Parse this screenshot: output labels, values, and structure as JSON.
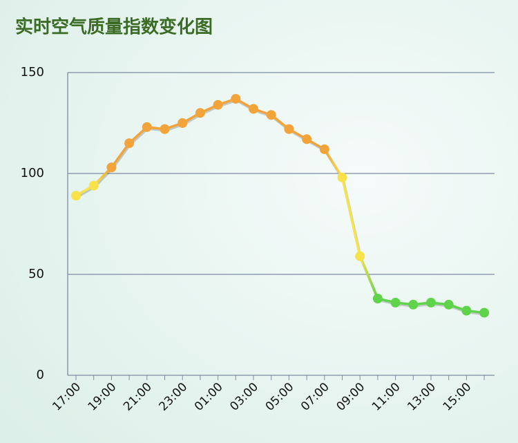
{
  "chart_data": {
    "type": "line",
    "title": "实时空气质量指数变化图",
    "categories": [
      "17:00",
      null,
      "19:00",
      null,
      "21:00",
      null,
      "23:00",
      null,
      "01:00",
      null,
      "03:00",
      null,
      "05:00",
      null,
      "07:00",
      null,
      "09:00",
      null,
      "11:00",
      null,
      "13:00",
      null,
      "15:00",
      null
    ],
    "series": [
      {
        "values": [
          89,
          94,
          103,
          115,
          123,
          122,
          125,
          130,
          134,
          137,
          132,
          129,
          122,
          117,
          112,
          98,
          59,
          38,
          36,
          35,
          36,
          35,
          32,
          31
        ],
        "colors": [
          "#f7e24a",
          "#f7e24a",
          "#f2a33a",
          "#f2a33a",
          "#f2a33a",
          "#f2a33a",
          "#f2a33a",
          "#f2a33a",
          "#f2a33a",
          "#f2a33a",
          "#f2a33a",
          "#f2a33a",
          "#f2a33a",
          "#f2a33a",
          "#f2a33a",
          "#f7e24a",
          "#f7e24a",
          "#5fd34a",
          "#5fd34a",
          "#5fd34a",
          "#5fd34a",
          "#5fd34a",
          "#5fd34a",
          "#5fd34a"
        ]
      }
    ],
    "ylim": [
      0,
      150
    ],
    "yticks": [
      0,
      50,
      100,
      150
    ],
    "grid": true
  }
}
